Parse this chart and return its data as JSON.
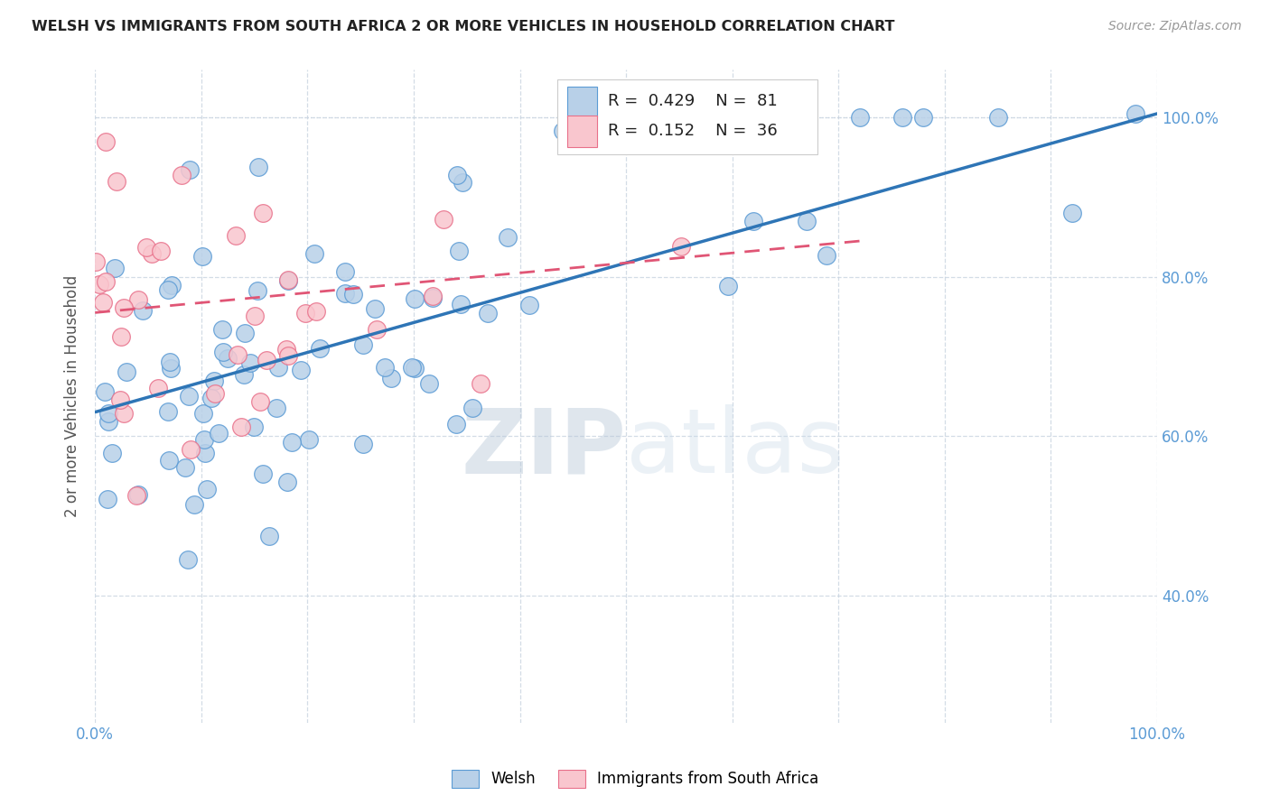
{
  "title": "WELSH VS IMMIGRANTS FROM SOUTH AFRICA 2 OR MORE VEHICLES IN HOUSEHOLD CORRELATION CHART",
  "source": "Source: ZipAtlas.com",
  "ylabel": "2 or more Vehicles in Household",
  "legend_label_blue": "Welsh",
  "legend_label_pink": "Immigrants from South Africa",
  "R_blue": 0.429,
  "N_blue": 81,
  "R_pink": 0.152,
  "N_pink": 36,
  "blue_scatter_color": "#b8d0e8",
  "blue_edge_color": "#5b9bd5",
  "pink_scatter_color": "#f9c6ce",
  "pink_edge_color": "#e8708a",
  "blue_line_color": "#2e75b6",
  "pink_line_color": "#e05575",
  "watermark_color": "#d0dff0",
  "grid_color": "#c8d4e0",
  "title_color": "#222222",
  "axis_color": "#5b9bd5",
  "ylabel_color": "#555555",
  "source_color": "#999999",
  "xlim": [
    0.0,
    1.0
  ],
  "ylim": [
    0.24,
    1.06
  ],
  "yticks": [
    0.4,
    0.6,
    0.8,
    1.0
  ],
  "ytick_labels": [
    "40.0%",
    "60.0%",
    "80.0%",
    "100.0%"
  ],
  "xtick_positions": [
    0.0,
    0.1,
    0.2,
    0.3,
    0.4,
    0.5,
    0.6,
    0.7,
    0.8,
    0.9,
    1.0
  ],
  "blue_line_x0": 0.0,
  "blue_line_x1": 1.0,
  "blue_line_y0": 0.63,
  "blue_line_y1": 1.005,
  "pink_line_x0": 0.0,
  "pink_line_x1": 0.72,
  "pink_line_y0": 0.755,
  "pink_line_y1": 0.845
}
